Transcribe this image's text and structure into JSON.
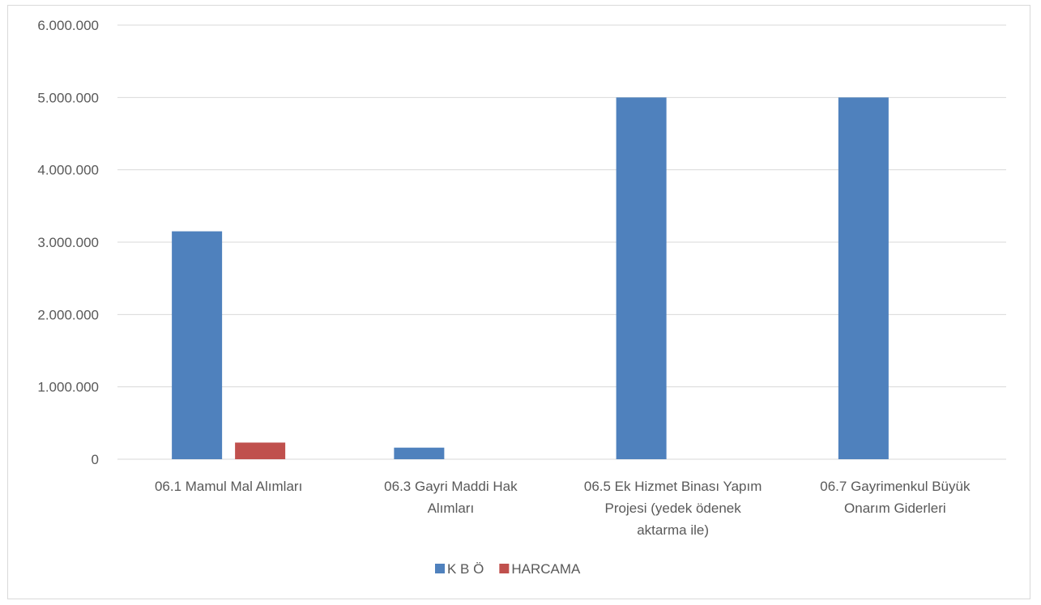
{
  "chart_data": {
    "type": "bar",
    "categories": [
      [
        "06.1 Mamul Mal Alımları"
      ],
      [
        "06.3 Gayri Maddi Hak",
        "Alımları"
      ],
      [
        "06.5 Ek Hizmet Binası Yapım",
        "Projesi (yedek ödenek",
        "aktarma ile)"
      ],
      [
        "06.7 Gayrimenkul Büyük",
        "Onarım Giderleri"
      ]
    ],
    "series": [
      {
        "name": "K B Ö",
        "color": "#4f81bd",
        "values": [
          3150000,
          160000,
          5000000,
          5000000
        ]
      },
      {
        "name": "HARCAMA",
        "color": "#c0504d",
        "values": [
          230000,
          0,
          0,
          0
        ]
      }
    ],
    "ylim": [
      0,
      6000000
    ],
    "yticks": [
      0,
      1000000,
      2000000,
      3000000,
      4000000,
      5000000,
      6000000
    ],
    "ytick_labels": [
      "0",
      "1.000.000",
      "2.000.000",
      "3.000.000",
      "4.000.000",
      "5.000.000",
      "6.000.000"
    ],
    "title": "",
    "xlabel": "",
    "ylabel": "",
    "grid": true,
    "legend": "bottom-center"
  }
}
